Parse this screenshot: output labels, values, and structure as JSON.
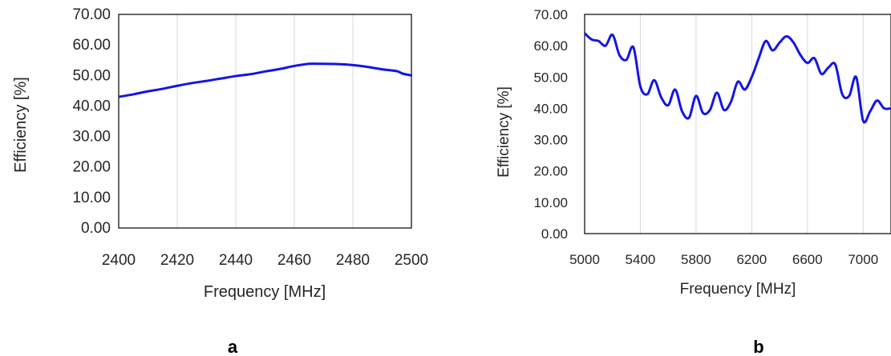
{
  "chart_data": [
    {
      "type": "line",
      "panel_label": "a",
      "xlabel": "Frequency [MHz]",
      "ylabel": "Efficiency [%]",
      "xlim": [
        2400,
        2500
      ],
      "ylim": [
        0,
        70
      ],
      "x_ticks": [
        "2400",
        "2420",
        "2440",
        "2460",
        "2480",
        "2500"
      ],
      "y_ticks": [
        "0.00",
        "10.00",
        "20.00",
        "30.00",
        "40.00",
        "50.00",
        "60.00",
        "70.00"
      ],
      "grid": "vertical",
      "legend": "none",
      "color": "#1414e6",
      "series": [
        {
          "x": [
            2400,
            2405,
            2410,
            2415,
            2420,
            2425,
            2430,
            2435,
            2440,
            2445,
            2450,
            2455,
            2460,
            2465,
            2470,
            2475,
            2480,
            2485,
            2490,
            2495,
            2497,
            2500
          ],
          "values": [
            43.0,
            43.8,
            44.8,
            45.6,
            46.6,
            47.5,
            48.2,
            49.0,
            49.8,
            50.4,
            51.3,
            52.1,
            53.1,
            53.8,
            53.8,
            53.7,
            53.4,
            52.8,
            52.0,
            51.4,
            50.6,
            50.0
          ]
        }
      ]
    },
    {
      "type": "line",
      "panel_label": "b",
      "xlabel": "Frequency [MHz]",
      "ylabel": "Efficiency [%]",
      "xlim": [
        5000,
        7200
      ],
      "ylim": [
        0,
        70
      ],
      "x_ticks": [
        "5000",
        "5400",
        "5800",
        "6200",
        "6600",
        "7000"
      ],
      "y_ticks": [
        "0.00",
        "10.00",
        "20.00",
        "30.00",
        "40.00",
        "50.00",
        "60.00",
        "70.00"
      ],
      "grid": "vertical",
      "legend": "none",
      "color": "#1414e6",
      "series": [
        {
          "x": [
            5000,
            5050,
            5100,
            5150,
            5200,
            5250,
            5300,
            5350,
            5400,
            5450,
            5500,
            5550,
            5600,
            5650,
            5700,
            5750,
            5800,
            5850,
            5900,
            5950,
            6000,
            6050,
            6100,
            6150,
            6200,
            6250,
            6300,
            6350,
            6400,
            6450,
            6500,
            6550,
            6600,
            6650,
            6700,
            6750,
            6800,
            6850,
            6900,
            6950,
            7000,
            7050,
            7100,
            7150,
            7200
          ],
          "values": [
            64,
            62,
            61.5,
            60,
            63.5,
            57,
            55.5,
            59.5,
            47,
            44.5,
            49,
            43.5,
            41,
            46,
            39,
            37,
            44,
            38.5,
            39.5,
            45,
            39.5,
            42,
            48.5,
            46,
            50,
            56,
            61.5,
            58.5,
            61,
            63,
            61,
            57,
            54.5,
            56,
            51,
            53,
            54,
            44.5,
            44,
            50,
            36,
            39,
            42.5,
            40,
            40
          ]
        }
      ]
    }
  ]
}
